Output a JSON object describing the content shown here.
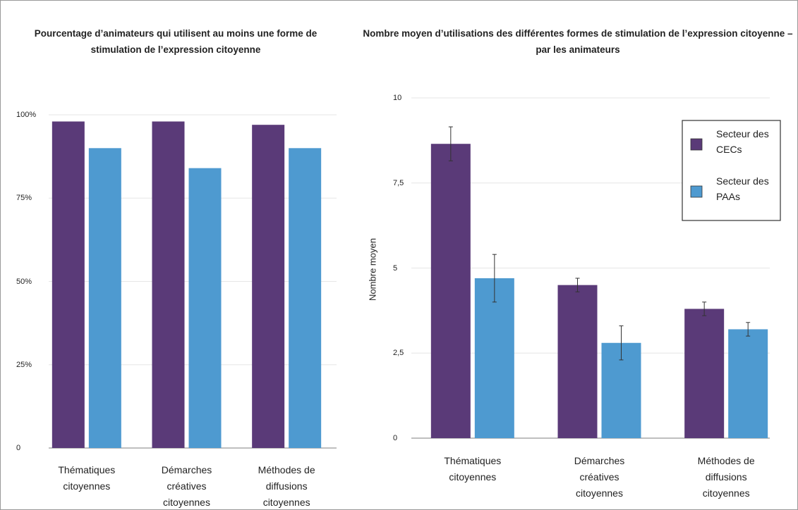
{
  "chart_data": [
    {
      "type": "bar",
      "title": "Pourcentage d’animateurs qui utilisent au moins une forme de stimulation de l’expression citoyenne",
      "categories": [
        "Thématiques citoyennes",
        "Démarches créatives citoyennes",
        "Méthodes de diffusions citoyennes"
      ],
      "series": [
        {
          "color": "#5a3a78",
          "values": [
            98,
            98,
            97
          ]
        },
        {
          "color": "#4e9ad0",
          "values": [
            90,
            84,
            90
          ]
        }
      ],
      "ylim": [
        0,
        100
      ],
      "yticks": [
        0,
        {
          "value": 25,
          "label": "25%"
        },
        {
          "value": 50,
          "label": "50%"
        },
        {
          "value": 75,
          "label": "75%"
        },
        {
          "value": 100,
          "label": "100%"
        }
      ],
      "grid": true
    },
    {
      "type": "bar",
      "title": "Nombre moyen d’utilisations des différentes formes de stimulation de l’expression citoyenne – par les animateurs",
      "y_label": "Nombre moyen",
      "categories": [
        "Thématiques citoyennes",
        "Démarches créatives citoyennes",
        "Méthodes de diffusions citoyennes"
      ],
      "series": [
        {
          "name": "Secteur des CECs",
          "color": "#5a3a78",
          "values": [
            8.65,
            4.5,
            3.8
          ],
          "errors": [
            0.5,
            0.2,
            0.2
          ]
        },
        {
          "name": "Secteur des PAAs",
          "color": "#4e9ad0",
          "values": [
            4.7,
            2.8,
            3.2
          ],
          "errors": [
            0.7,
            0.5,
            0.2
          ]
        }
      ],
      "ylim": [
        0,
        10
      ],
      "yticks": [
        0,
        {
          "value": 2.5,
          "label": "2,5"
        },
        5,
        {
          "value": 7.5,
          "label": "7,5"
        },
        10
      ],
      "grid": true,
      "legend": "upper right"
    }
  ]
}
